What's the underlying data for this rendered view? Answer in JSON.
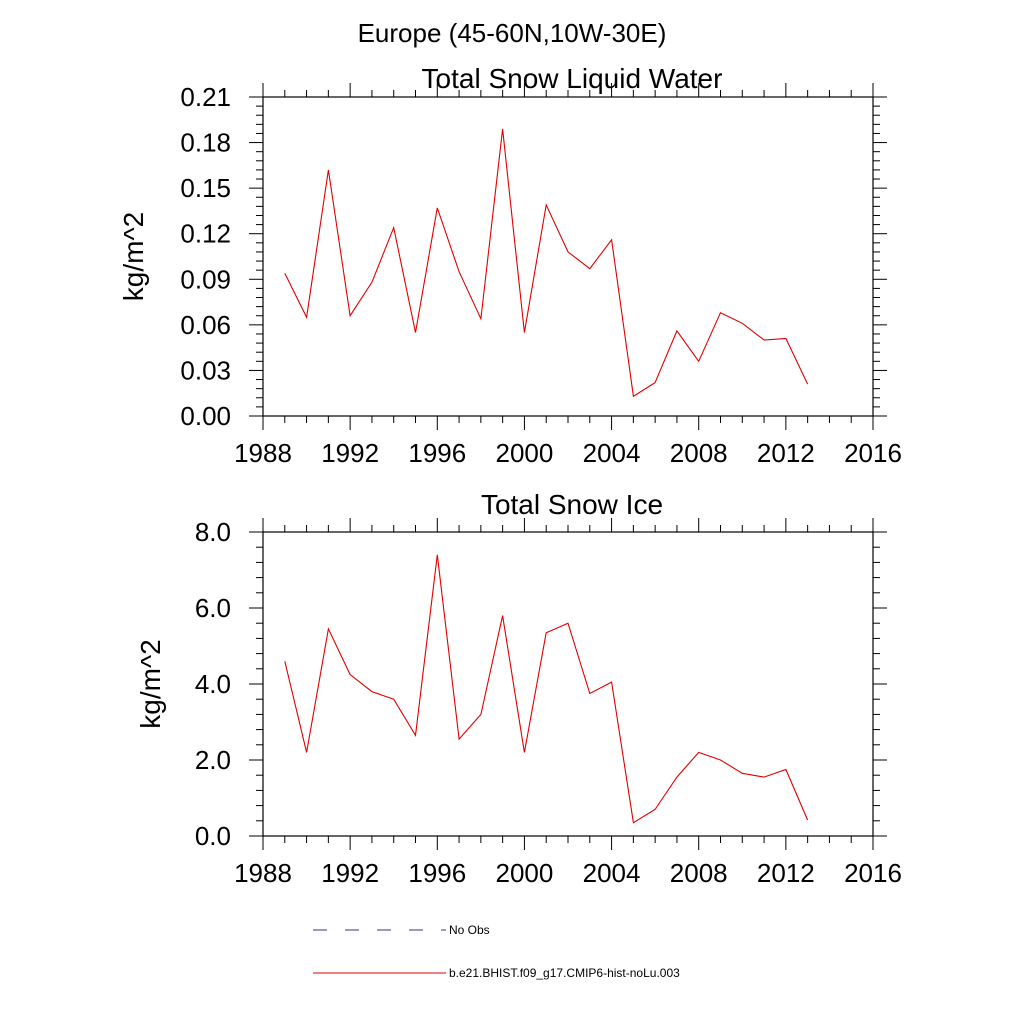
{
  "figure": {
    "suptitle": "Europe (45-60N,10W-30E)"
  },
  "legend": {
    "entries": [
      {
        "label": "No Obs",
        "color": "#2f3a8f",
        "dash": true
      },
      {
        "label": "b.e21.BHIST.f09_g17.CMIP6-hist-noLu.003",
        "color": "#e00000",
        "dash": false
      }
    ]
  },
  "chart_data": [
    {
      "type": "line",
      "title": "Total Snow Liquid Water",
      "ylabel": "kg/m^2",
      "xlabel": "",
      "xlim": [
        1988,
        2016
      ],
      "ylim": [
        0,
        0.21
      ],
      "xticks": [
        1988,
        1992,
        1996,
        2000,
        2004,
        2008,
        2012,
        2016
      ],
      "yticks": [
        0.0,
        0.03,
        0.06,
        0.09,
        0.12,
        0.15,
        0.18,
        0.21
      ],
      "ytick_labels": [
        "0.00",
        "0.03",
        "0.06",
        "0.09",
        "0.12",
        "0.15",
        "0.18",
        "0.21"
      ],
      "x_minor_step": 1,
      "y_minor_step": 0.006,
      "grid": false,
      "series": [
        {
          "name": "b.e21.BHIST.f09_g17.CMIP6-hist-noLu.003",
          "color": "#e00000",
          "x": [
            1989,
            1990,
            1991,
            1992,
            1993,
            1994,
            1995,
            1996,
            1997,
            1998,
            1999,
            2000,
            2001,
            2002,
            2003,
            2004,
            2005,
            2006,
            2007,
            2008,
            2009,
            2010,
            2011,
            2012,
            2013
          ],
          "y": [
            0.094,
            0.065,
            0.162,
            0.066,
            0.088,
            0.124,
            0.055,
            0.137,
            0.095,
            0.064,
            0.189,
            0.055,
            0.139,
            0.108,
            0.097,
            0.116,
            0.013,
            0.022,
            0.056,
            0.036,
            0.068,
            0.061,
            0.05,
            0.051,
            0.021
          ]
        }
      ]
    },
    {
      "type": "line",
      "title": "Total Snow Ice",
      "ylabel": "kg/m^2",
      "xlabel": "",
      "xlim": [
        1988,
        2016
      ],
      "ylim": [
        0,
        8
      ],
      "xticks": [
        1988,
        1992,
        1996,
        2000,
        2004,
        2008,
        2012,
        2016
      ],
      "yticks": [
        0,
        2,
        4,
        6,
        8
      ],
      "ytick_labels": [
        "0.0",
        "2.0",
        "4.0",
        "6.0",
        "8.0"
      ],
      "x_minor_step": 1,
      "y_minor_step": 0.4,
      "grid": false,
      "series": [
        {
          "name": "b.e21.BHIST.f09_g17.CMIP6-hist-noLu.003",
          "color": "#e00000",
          "x": [
            1989,
            1990,
            1991,
            1992,
            1993,
            1994,
            1995,
            1996,
            1997,
            1998,
            1999,
            2000,
            2001,
            2002,
            2003,
            2004,
            2005,
            2006,
            2007,
            2008,
            2009,
            2010,
            2011,
            2012,
            2013
          ],
          "y": [
            4.6,
            2.2,
            5.45,
            4.25,
            3.8,
            3.6,
            2.65,
            7.4,
            2.55,
            3.2,
            5.8,
            2.2,
            5.35,
            5.6,
            3.75,
            4.05,
            0.35,
            0.7,
            1.55,
            2.2,
            2.0,
            1.65,
            1.55,
            1.75,
            0.42
          ]
        }
      ]
    }
  ]
}
